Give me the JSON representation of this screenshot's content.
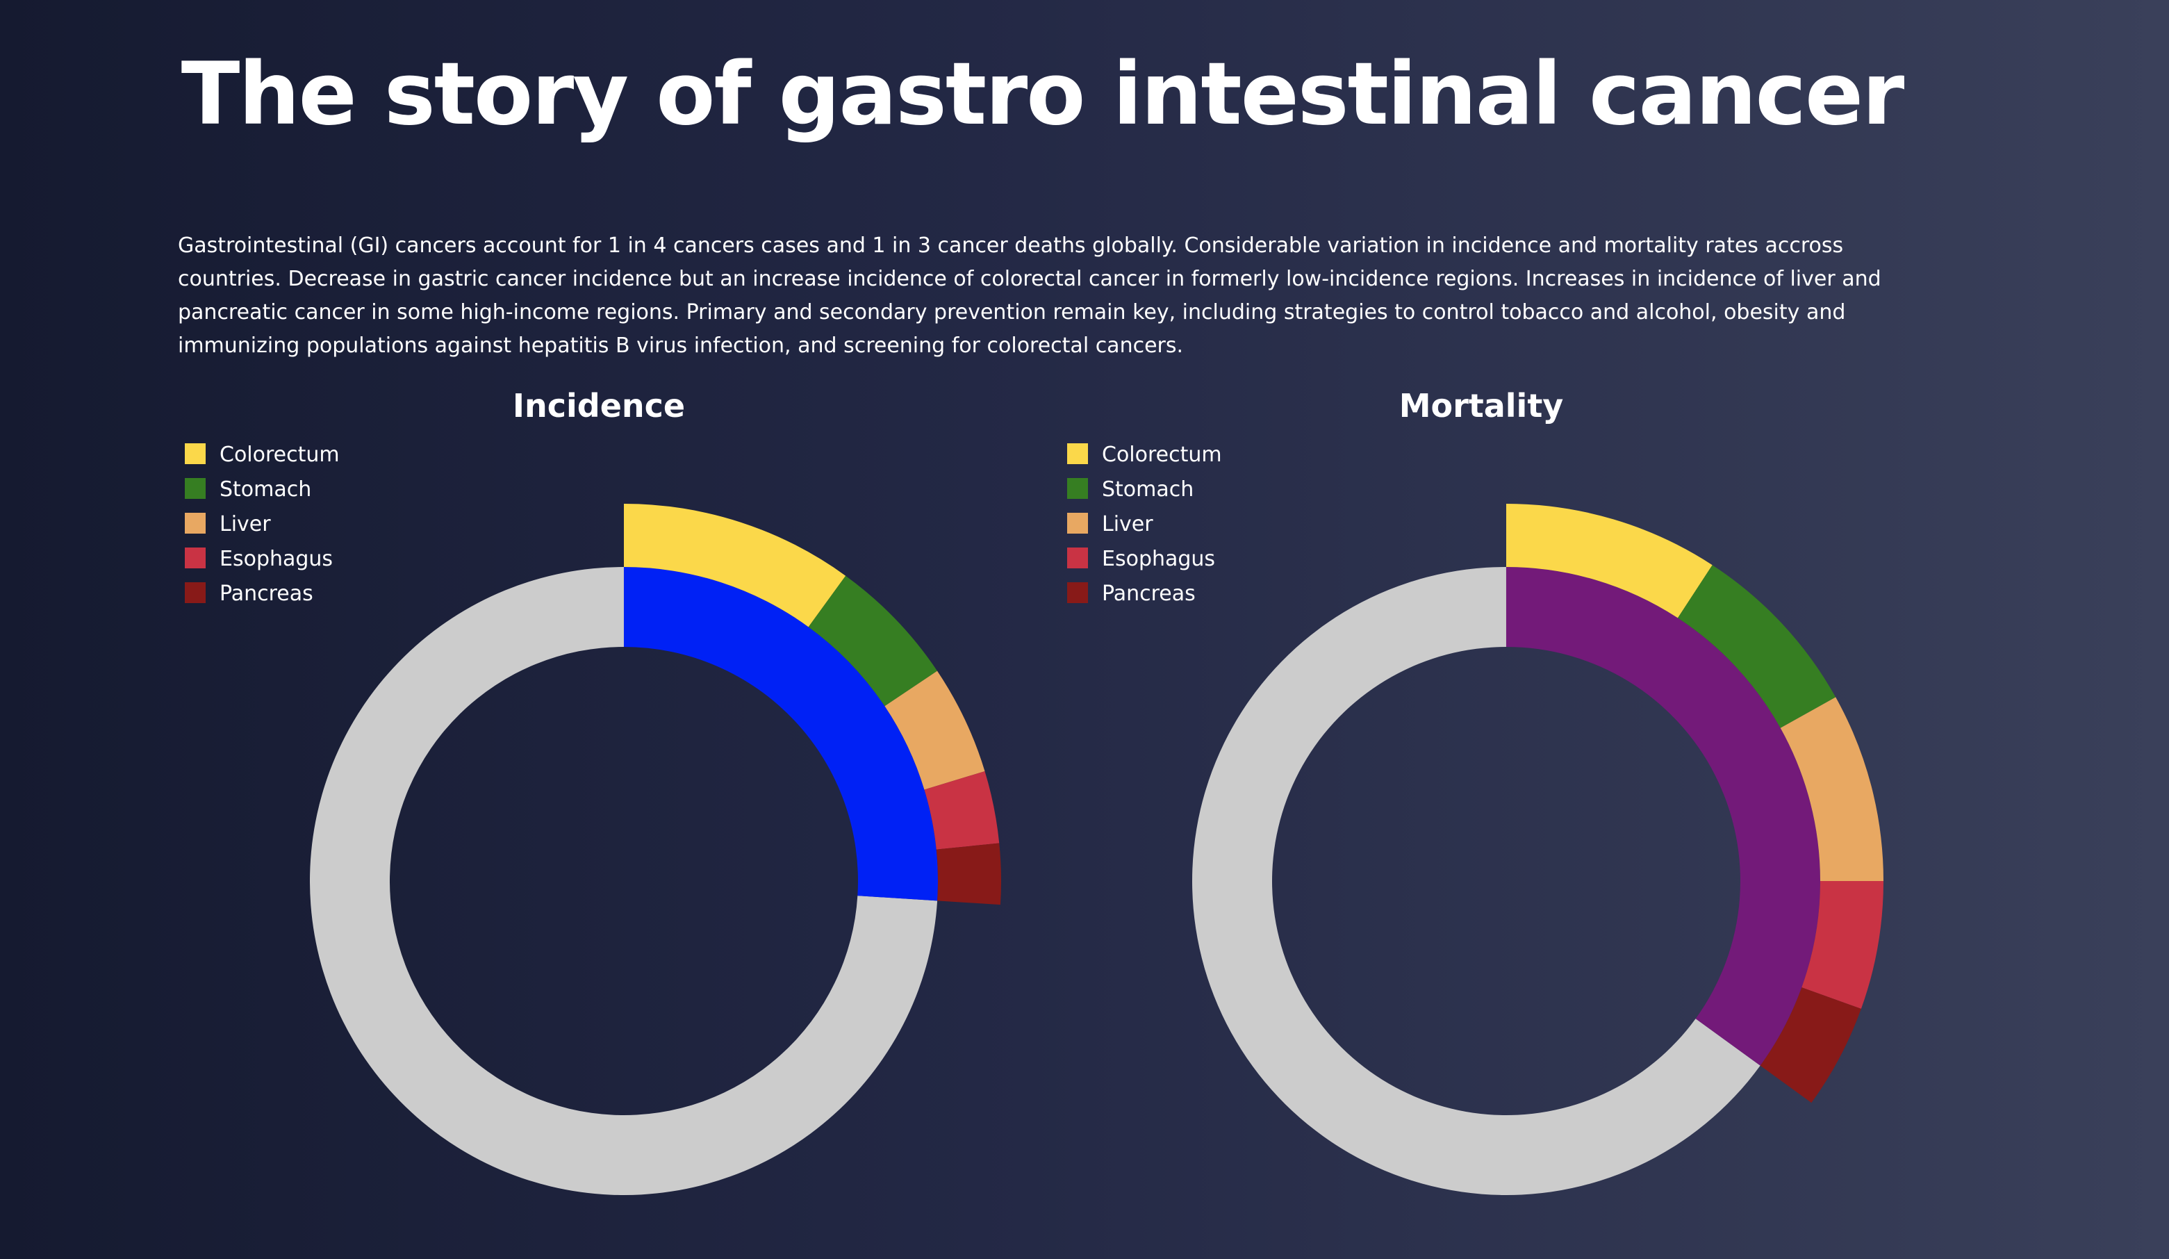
{
  "page": {
    "title": "The story of gastro intestinal cancer",
    "intro": "Gastrointestinal (GI) cancers account for 1 in 4 cancers cases and 1 in 3 cancer deaths globally. Considerable variation in incidence and mortality rates accross countries. Decrease in gastric cancer incidence but an increase incidence of colorectal cancer in formerly low-incidence regions. Increases in incidence of liver and pancreatic cancer in some high-income regions. Primary and secondary prevention remain key, including strategies to control tobacco and alcohol, obesity and immunizing populations against hepatitis B virus infection, and screening for colorectal cancers."
  },
  "colors": {
    "Colorectum": "#fbd84a",
    "Stomach": "#367e22",
    "Liver": "#e8a862",
    "Esophagus": "#c93344",
    "Pancreas": "#881a18",
    "remainder": "#cccccc",
    "incidence_total": "#0021f5",
    "mortality_total": "#731a79"
  },
  "chart_data": [
    {
      "type": "pie",
      "title": "Incidence",
      "legend": [
        "Colorectum",
        "Stomach",
        "Liver",
        "Esophagus",
        "Pancreas"
      ],
      "legend_position": "top-left",
      "inner_ring": {
        "gi_share": 0.26,
        "remainder_share": 0.74
      },
      "outer_ring": [
        {
          "label": "Colorectum",
          "value": 0.1
        },
        {
          "label": "Stomach",
          "value": 0.056
        },
        {
          "label": "Liver",
          "value": 0.047
        },
        {
          "label": "Esophagus",
          "value": 0.031
        },
        {
          "label": "Pancreas",
          "value": 0.026
        }
      ]
    },
    {
      "type": "pie",
      "title": "Mortality",
      "legend": [
        "Colorectum",
        "Stomach",
        "Liver",
        "Esophagus",
        "Pancreas"
      ],
      "legend_position": "top-left",
      "inner_ring": {
        "gi_share": 0.35,
        "remainder_share": 0.65
      },
      "outer_ring": [
        {
          "label": "Colorectum",
          "value": 0.092
        },
        {
          "label": "Stomach",
          "value": 0.077
        },
        {
          "label": "Liver",
          "value": 0.081
        },
        {
          "label": "Esophagus",
          "value": 0.055
        },
        {
          "label": "Pancreas",
          "value": 0.045
        }
      ]
    }
  ]
}
